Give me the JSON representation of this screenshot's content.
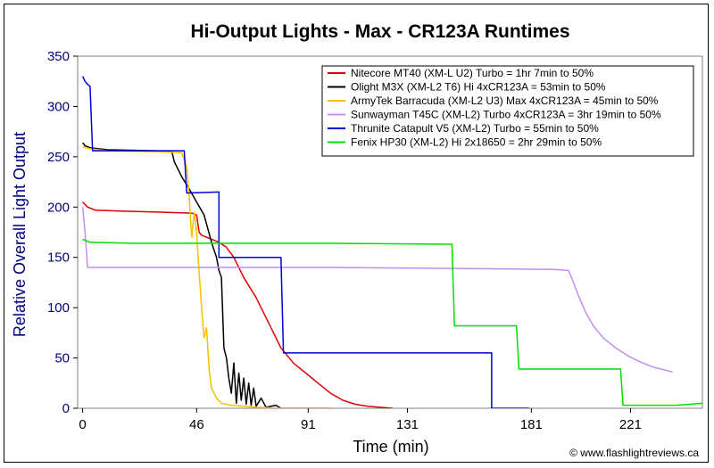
{
  "chart_data": {
    "type": "line",
    "title": "Hi-Output Lights - Max - CR123A Runtimes",
    "xlabel": "Time (min)",
    "ylabel": "Relative Overall Light Output",
    "xlim": [
      -2,
      250
    ],
    "ylim": [
      0,
      350
    ],
    "xticks": [
      0,
      46,
      91,
      131,
      181,
      221
    ],
    "yticks": [
      0,
      50,
      100,
      150,
      200,
      250,
      300,
      350
    ],
    "grid": false,
    "legend_position": "top-right",
    "credit": "© www.flashlightreviews.ca",
    "series": [
      {
        "name": "Nitecore MT40 (XM-L U2) Turbo = 1hr 7min to 50%",
        "color": "#e00000",
        "points": [
          [
            0,
            205
          ],
          [
            2,
            200
          ],
          [
            5,
            197
          ],
          [
            15,
            196
          ],
          [
            30,
            195
          ],
          [
            44,
            194
          ],
          [
            46,
            192
          ],
          [
            47,
            175
          ],
          [
            48,
            172
          ],
          [
            50,
            170
          ],
          [
            55,
            165
          ],
          [
            58,
            160
          ],
          [
            61,
            150
          ],
          [
            65,
            130
          ],
          [
            70,
            110
          ],
          [
            75,
            85
          ],
          [
            80,
            60
          ],
          [
            85,
            45
          ],
          [
            90,
            35
          ],
          [
            95,
            25
          ],
          [
            100,
            15
          ],
          [
            105,
            8
          ],
          [
            110,
            4
          ],
          [
            115,
            2
          ],
          [
            120,
            1
          ],
          [
            125,
            0
          ]
        ]
      },
      {
        "name": "Olight M3X (XM-L2 T6) Hi 4xCR123A = 53min to 50%",
        "color": "#000000",
        "points": [
          [
            0,
            264
          ],
          [
            1,
            261
          ],
          [
            3,
            259
          ],
          [
            10,
            257
          ],
          [
            30,
            256
          ],
          [
            36,
            255
          ],
          [
            37,
            245
          ],
          [
            40,
            230
          ],
          [
            43,
            218
          ],
          [
            46,
            205
          ],
          [
            49,
            192
          ],
          [
            52,
            165
          ],
          [
            54,
            150
          ],
          [
            55,
            137
          ],
          [
            56,
            130
          ],
          [
            57,
            60
          ],
          [
            58,
            50
          ],
          [
            59,
            30
          ],
          [
            60,
            15
          ],
          [
            61,
            45
          ],
          [
            62,
            5
          ],
          [
            63,
            35
          ],
          [
            64,
            8
          ],
          [
            65,
            30
          ],
          [
            66,
            4
          ],
          [
            67,
            25
          ],
          [
            68,
            3
          ],
          [
            69,
            20
          ],
          [
            70,
            2
          ],
          [
            72,
            10
          ],
          [
            74,
            1
          ],
          [
            78,
            3
          ],
          [
            80,
            0
          ],
          [
            90,
            0
          ],
          [
            100,
            0
          ]
        ]
      },
      {
        "name": "ArmyTek Barracuda (XM-L2 U3) Max 4xCR123A = 45min to 50%",
        "color": "#f5c000",
        "points": [
          [
            0,
            260
          ],
          [
            3,
            258
          ],
          [
            10,
            256
          ],
          [
            30,
            255
          ],
          [
            40,
            254
          ],
          [
            42,
            240
          ],
          [
            43,
            210
          ],
          [
            44,
            170
          ],
          [
            45,
            195
          ],
          [
            46,
            175
          ],
          [
            47,
            135
          ],
          [
            48,
            100
          ],
          [
            49,
            70
          ],
          [
            50,
            80
          ],
          [
            51,
            40
          ],
          [
            52,
            20
          ],
          [
            53,
            15
          ],
          [
            54,
            10
          ],
          [
            56,
            5
          ],
          [
            60,
            3
          ],
          [
            70,
            1
          ],
          [
            80,
            0
          ],
          [
            100,
            0
          ]
        ]
      },
      {
        "name": "Sunwayman T45C (XM-L2) Turbo 4xCR123A = 3hr 19min to 50%",
        "color": "#c090f0",
        "points": [
          [
            0,
            200
          ],
          [
            1,
            175
          ],
          [
            2,
            140
          ],
          [
            10,
            140
          ],
          [
            50,
            140
          ],
          [
            100,
            140
          ],
          [
            150,
            139
          ],
          [
            190,
            138
          ],
          [
            196,
            137
          ],
          [
            198,
            125
          ],
          [
            200,
            112
          ],
          [
            203,
            95
          ],
          [
            206,
            82
          ],
          [
            210,
            70
          ],
          [
            215,
            60
          ],
          [
            220,
            52
          ],
          [
            225,
            46
          ],
          [
            230,
            41
          ],
          [
            235,
            38
          ],
          [
            238,
            36
          ]
        ]
      },
      {
        "name": "Thrunite Catapult V5 (XM-L2) Turbo = 55min to 50%",
        "color": "#0000e0",
        "points": [
          [
            0,
            330
          ],
          [
            1,
            325
          ],
          [
            2,
            322
          ],
          [
            3,
            320
          ],
          [
            4,
            256
          ],
          [
            20,
            256
          ],
          [
            41,
            256
          ],
          [
            42,
            214
          ],
          [
            55,
            215
          ],
          [
            55,
            150
          ],
          [
            80,
            150
          ],
          [
            81,
            55
          ],
          [
            120,
            55
          ],
          [
            165,
            55
          ],
          [
            165,
            0
          ],
          [
            180,
            0
          ]
        ]
      },
      {
        "name": "Fenix HP30 (XM-L2) Hi 2x18650 = 2hr 29min to 50%",
        "color": "#00dd00",
        "points": [
          [
            0,
            168
          ],
          [
            3,
            165
          ],
          [
            20,
            164
          ],
          [
            60,
            164
          ],
          [
            100,
            164
          ],
          [
            149,
            163
          ],
          [
            150,
            82
          ],
          [
            175,
            82
          ],
          [
            176,
            39
          ],
          [
            217,
            39
          ],
          [
            218,
            3
          ],
          [
            240,
            3
          ],
          [
            250,
            5
          ]
        ]
      }
    ]
  }
}
